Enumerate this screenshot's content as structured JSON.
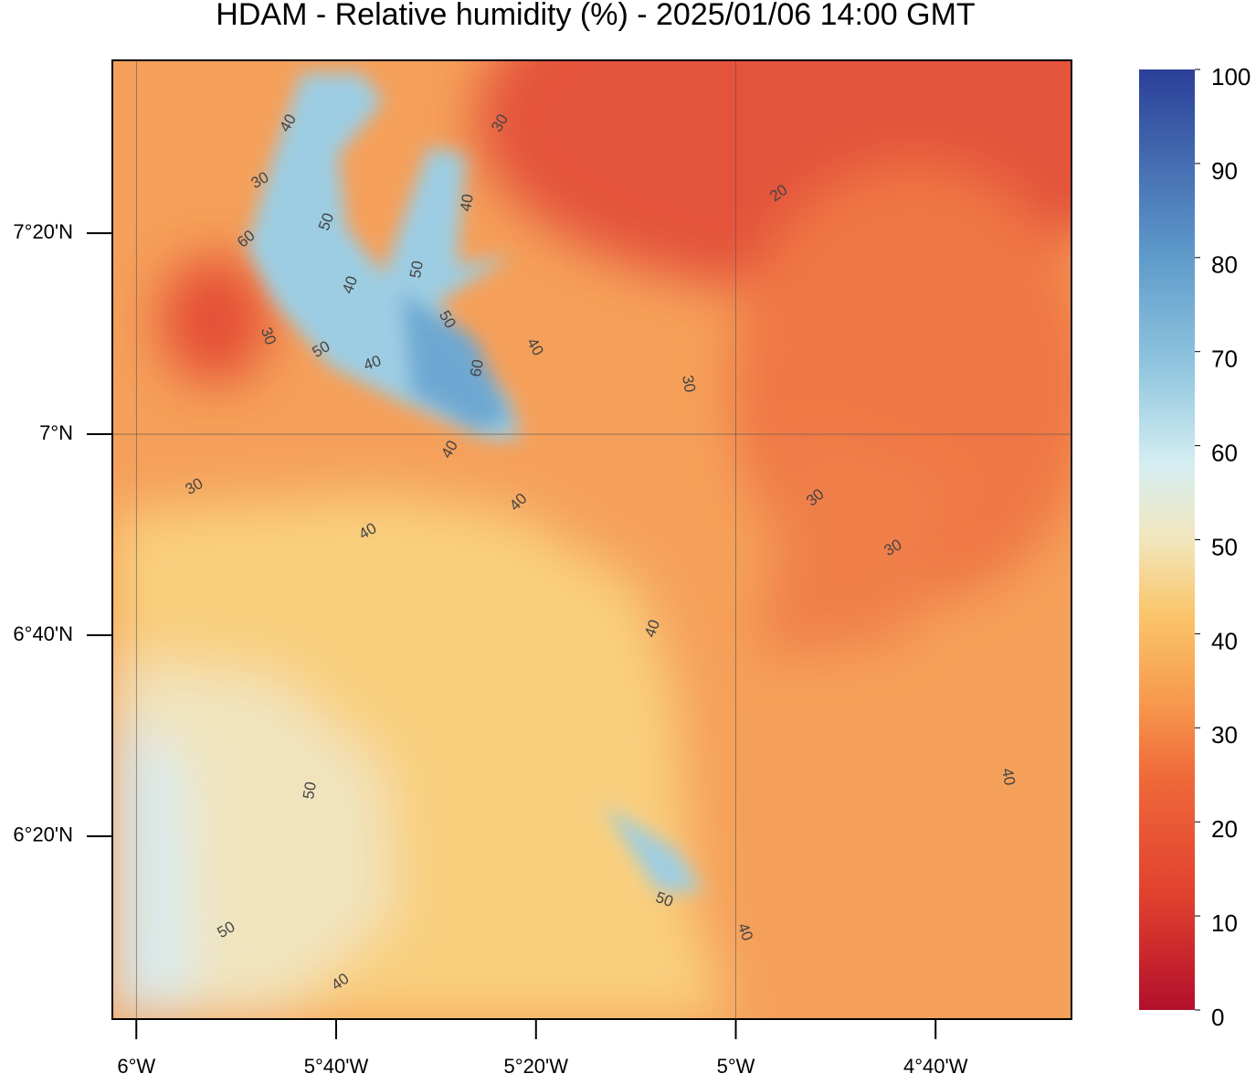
{
  "title": "HDAM - Relative humidity (%)  -  2025/01/06  14:00 GMT",
  "map": {
    "xlim": [
      -6.04,
      -4.44
    ],
    "ylim": [
      6.03,
      7.62
    ],
    "xticks": [
      {
        "value": -6,
        "label": "6°W"
      },
      {
        "value": -5.6667,
        "label": "5°40'W"
      },
      {
        "value": -5.3333,
        "label": "5°20'W"
      },
      {
        "value": -5,
        "label": "5°W"
      },
      {
        "value": -4.6667,
        "label": "4°40'W"
      }
    ],
    "yticks": [
      {
        "value": 7.3333,
        "label": "7°20'N"
      },
      {
        "value": 7,
        "label": "7°N"
      },
      {
        "value": 6.6667,
        "label": "6°40'N"
      },
      {
        "value": 6.3333,
        "label": "6°20'N"
      }
    ],
    "contour_labels": [
      30,
      30,
      30,
      30,
      30,
      30,
      30,
      40,
      40,
      40,
      40,
      40,
      40,
      40,
      40,
      40,
      40,
      40,
      40,
      50,
      50,
      50,
      50,
      50,
      50,
      50,
      60,
      60,
      20
    ]
  },
  "colorbar": {
    "lim": [
      0,
      100
    ],
    "ticks": [
      0,
      10,
      20,
      30,
      40,
      50,
      60,
      70,
      80,
      90,
      100
    ]
  }
}
